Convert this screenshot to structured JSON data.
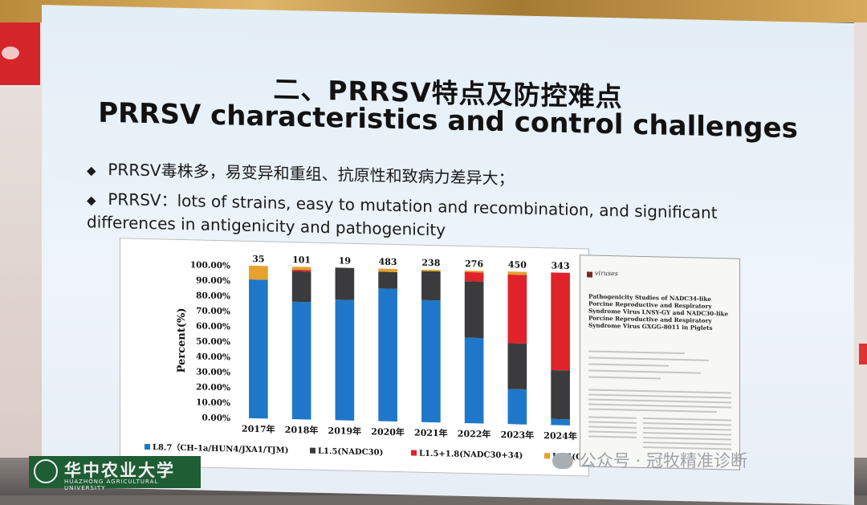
{
  "slide": {
    "title_cn": "二、PRRSV特点及防控难点",
    "title_en": "PRRSV characteristics and control challenges",
    "bullet_marker": "◆",
    "bullets": [
      "PRRSV毒株多，易变异和重组、抗原性和致病力差异大；",
      "PRRSV：lots of strains, easy to mutation and recombination, and significant differences in antigenicity and pathogenicity"
    ]
  },
  "chart_data": {
    "type": "bar",
    "stacked": "percent",
    "ylabel": "Percent(%)",
    "ylim": [
      0,
      100
    ],
    "yticks": [
      "0.00%",
      "10.00%",
      "20.00%",
      "30.00%",
      "40.00%",
      "50.00%",
      "60.00%",
      "70.00%",
      "80.00%",
      "90.00%",
      "100.00%"
    ],
    "categories": [
      "2017年",
      "2018年",
      "2019年",
      "2020年",
      "2021年",
      "2022年",
      "2023年",
      "2024年"
    ],
    "totals": [
      "35",
      "101",
      "19",
      "483",
      "238",
      "276",
      "450",
      "343"
    ],
    "series": [
      {
        "name": "L8.7（CH-1a/HUN4/JXA1/TJM)",
        "color": "#1f77c9",
        "values": [
          91,
          77,
          79,
          87,
          80,
          56,
          23,
          4
        ]
      },
      {
        "name": "L1.5(NADC30)",
        "color": "#3b3b3d",
        "values": [
          0,
          20,
          21,
          11,
          19,
          37,
          30,
          32
        ]
      },
      {
        "name": "L1.5+1.8(NADC30+34)",
        "color": "#e0222a",
        "values": [
          0,
          1,
          0,
          0,
          0,
          6,
          45,
          64
        ]
      },
      {
        "name": "L3.5(QYYZ)",
        "color": "#e6a12e",
        "values": [
          9,
          2,
          0,
          2,
          1,
          1,
          2,
          0
        ]
      }
    ],
    "legend_position": "bottom"
  },
  "paper": {
    "journal": "viruses",
    "title": "Pathogenicity Studies of NADC34-like Porcine Reproductive and Respiratory Syndrome Virus LNSY-GY and NADC30-like Porcine Reproductive and Respiratory Syndrome Virus GXGG-8011 in Piglets"
  },
  "footer": {
    "university_cn": "华中农业大学",
    "university_en": "HUAZHONG AGRICULTURAL UNIVERSITY",
    "watermark": "公众号 · 冠牧精准诊断"
  }
}
